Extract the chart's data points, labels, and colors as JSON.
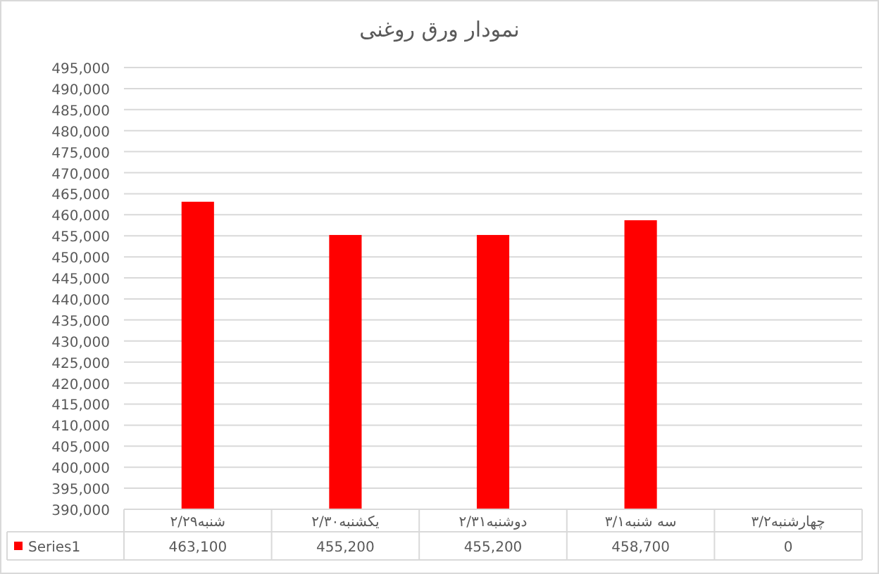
{
  "chart_data": {
    "type": "bar",
    "title": "نمودار ورق روغنی",
    "categories": [
      "شنبه۲/۲۹",
      "یکشنبه۲/۳۰",
      "دوشنبه۲/۳۱",
      "سه شنبه۳/۱",
      "چهارشنبه۳/۲"
    ],
    "series": [
      {
        "name": "Series1",
        "color": "#ff0000",
        "values": [
          463100,
          455200,
          455200,
          458700,
          null
        ],
        "value_labels": [
          "463,100",
          "455,200",
          "455,200",
          "458,700",
          "0"
        ]
      }
    ],
    "ylim": [
      390000,
      495000
    ],
    "yticks": [
      {
        "value": 390000,
        "label": "390,000"
      },
      {
        "value": 395000,
        "label": "395,000"
      },
      {
        "value": 400000,
        "label": "400,000"
      },
      {
        "value": 405000,
        "label": "405,000"
      },
      {
        "value": 410000,
        "label": "410,000"
      },
      {
        "value": 415000,
        "label": "415,000"
      },
      {
        "value": 420000,
        "label": "420,000"
      },
      {
        "value": 425000,
        "label": "425,000"
      },
      {
        "value": 430000,
        "label": "430,000"
      },
      {
        "value": 435000,
        "label": "435,000"
      },
      {
        "value": 440000,
        "label": "440,000"
      },
      {
        "value": 445000,
        "label": "445,000"
      },
      {
        "value": 450000,
        "label": "450,000"
      },
      {
        "value": 455000,
        "label": "455,000"
      },
      {
        "value": 460000,
        "label": "460,000"
      },
      {
        "value": 465000,
        "label": "465,000"
      },
      {
        "value": 470000,
        "label": "470,000"
      },
      {
        "value": 475000,
        "label": "475,000"
      },
      {
        "value": 480000,
        "label": "480,000"
      },
      {
        "value": 485000,
        "label": "485,000"
      },
      {
        "value": 490000,
        "label": "490,000"
      },
      {
        "value": 495000,
        "label": "495,000"
      }
    ],
    "grid": "y",
    "legend": "bottom"
  }
}
